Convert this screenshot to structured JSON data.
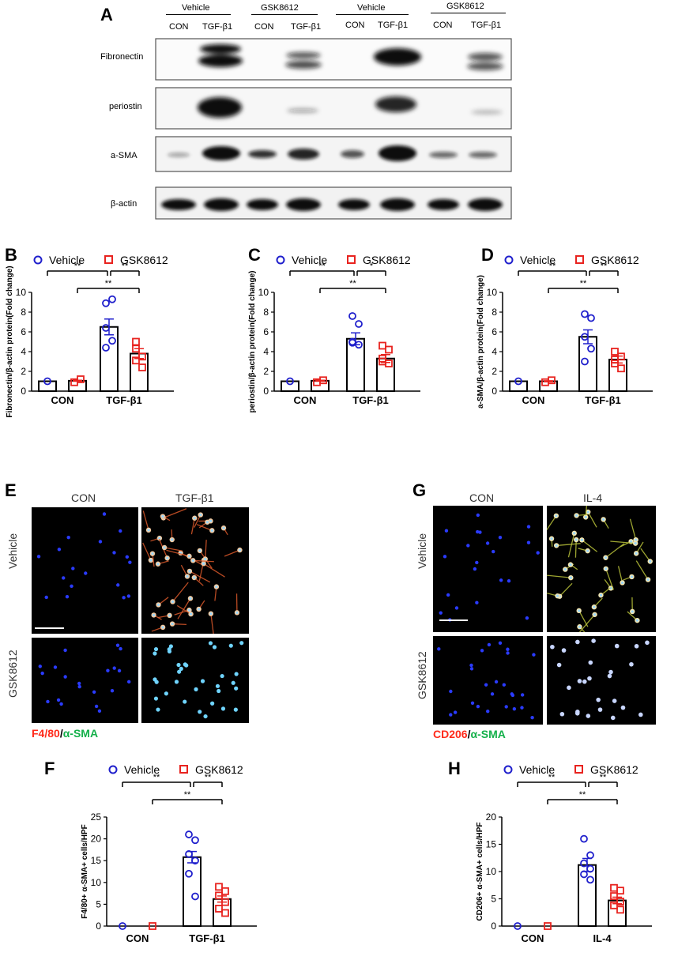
{
  "panel_letters": [
    "A",
    "B",
    "C",
    "D",
    "E",
    "F",
    "G",
    "H"
  ],
  "blot": {
    "groups": [
      "Vehicle",
      "GSK8612",
      "Vehicle",
      "GSK8612"
    ],
    "lanes": [
      "CON",
      "TGF-β1",
      "CON",
      "TGF-β1",
      "CON",
      "TGF-β1",
      "CON",
      "TGF-β1"
    ],
    "rows": [
      "Fibronectin",
      "periostin",
      "a-SMA",
      "β-actin"
    ]
  },
  "legend": {
    "vehicle": "Vehicle",
    "gsk": "GSK8612"
  },
  "colors": {
    "vehicle": "#1f1fcc",
    "gsk": "#e8231f",
    "dapi": "#2a3bff",
    "red_stain": "#ff2a1a",
    "green_stain": "#14b04a"
  },
  "micro_e": {
    "col_con": "CON",
    "col_treat": "TGF-β1",
    "row1": "Vehicle",
    "row2": "GSK8612",
    "stain_a": "F4/80",
    "stain_sep": "/",
    "stain_b": "α-SMA"
  },
  "micro_g": {
    "col_con": "CON",
    "col_treat": "IL-4",
    "row1": "Vehicle",
    "row2": "GSK8612",
    "stain_a": "CD206",
    "stain_sep": "/",
    "stain_b": "α-SMA"
  },
  "chart_data": [
    {
      "panel": "B",
      "type": "bar",
      "ylabel": "Fibronectin/β-actin protein(Fold change)",
      "categories": [
        "CON",
        "TGF-β1"
      ],
      "ylim": [
        0,
        10
      ],
      "yticks": [
        0,
        2,
        4,
        6,
        8,
        10
      ],
      "series": [
        {
          "name": "Vehicle",
          "values": [
            1.0,
            6.5
          ],
          "sem": [
            0,
            0.8
          ],
          "points": [
            [
              1.0
            ],
            [
              8.9,
              9.3,
              6.4,
              5.1,
              4.4
            ]
          ]
        },
        {
          "name": "GSK8612",
          "values": [
            1.05,
            3.8
          ],
          "sem": [
            0.05,
            0.5
          ],
          "points": [
            [
              0.9,
              1.2
            ],
            [
              5.0,
              3.5,
              3.1,
              2.4,
              4.3
            ]
          ]
        }
      ],
      "sig": [
        {
          "label": "**",
          "from": "CON-Vehicle",
          "to": "TGF-Vehicle"
        },
        {
          "label": "**",
          "from": "TGF-Vehicle",
          "to": "TGF-GSK"
        },
        {
          "label": "**",
          "from": "CON-GSK",
          "to": "TGF-GSK"
        }
      ]
    },
    {
      "panel": "C",
      "type": "bar",
      "ylabel": "periostin/β-actin protein(Fold change)",
      "categories": [
        "CON",
        "TGF-β1"
      ],
      "ylim": [
        0,
        10
      ],
      "yticks": [
        0,
        2,
        4,
        6,
        8,
        10
      ],
      "series": [
        {
          "name": "Vehicle",
          "values": [
            1.0,
            5.3
          ],
          "sem": [
            0,
            0.6
          ],
          "points": [
            [
              1.0
            ],
            [
              7.6,
              6.8,
              5.0,
              4.7,
              4.9
            ]
          ]
        },
        {
          "name": "GSK8612",
          "values": [
            1.05,
            3.3
          ],
          "sem": [
            0.05,
            0.4
          ],
          "points": [
            [
              0.9,
              1.1
            ],
            [
              4.6,
              4.2,
              3.3,
              2.8,
              3.0
            ]
          ]
        }
      ],
      "sig": [
        {
          "label": "**",
          "from": "CON-Vehicle",
          "to": "TGF-Vehicle"
        },
        {
          "label": "*",
          "from": "TGF-Vehicle",
          "to": "TGF-GSK"
        },
        {
          "label": "**",
          "from": "CON-GSK",
          "to": "TGF-GSK"
        }
      ]
    },
    {
      "panel": "D",
      "type": "bar",
      "ylabel": "a-SMA/β-actin protein(Fold change)",
      "categories": [
        "CON",
        "TGF-β1"
      ],
      "ylim": [
        0,
        10
      ],
      "yticks": [
        0,
        2,
        4,
        6,
        8,
        10
      ],
      "series": [
        {
          "name": "Vehicle",
          "values": [
            1.0,
            5.5
          ],
          "sem": [
            0,
            0.7
          ],
          "points": [
            [
              1.0
            ],
            [
              7.8,
              7.4,
              5.5,
              4.3,
              3.0
            ]
          ]
        },
        {
          "name": "GSK8612",
          "values": [
            1.0,
            3.2
          ],
          "sem": [
            0.05,
            0.35
          ],
          "points": [
            [
              0.9,
              1.1
            ],
            [
              4.0,
              3.5,
              2.8,
              2.3,
              3.2
            ]
          ]
        }
      ],
      "sig": [
        {
          "label": "**",
          "from": "CON-Vehicle",
          "to": "TGF-Vehicle"
        },
        {
          "label": "**",
          "from": "TGF-Vehicle",
          "to": "TGF-GSK"
        },
        {
          "label": "**",
          "from": "CON-GSK",
          "to": "TGF-GSK"
        }
      ]
    },
    {
      "panel": "F",
      "type": "bar",
      "ylabel": "F4/80+ α-SMA+ cells/HPF",
      "categories": [
        "CON",
        "TGF-β1"
      ],
      "ylim": [
        0,
        25
      ],
      "yticks": [
        0,
        5,
        10,
        15,
        20,
        25
      ],
      "series": [
        {
          "name": "Vehicle",
          "values": [
            0,
            15.8
          ],
          "sem": [
            0,
            1.3
          ],
          "points": [
            [
              0
            ],
            [
              21,
              19.7,
              16.5,
              15,
              12,
              6.8
            ]
          ]
        },
        {
          "name": "GSK8612",
          "values": [
            0,
            6.2
          ],
          "sem": [
            0,
            0.7
          ],
          "points": [
            [
              0
            ],
            [
              9,
              8,
              7,
              5.5,
              4,
              3
            ]
          ]
        }
      ],
      "sig": [
        {
          "label": "**",
          "from": "CON-Vehicle",
          "to": "TGF-Vehicle"
        },
        {
          "label": "**",
          "from": "TGF-Vehicle",
          "to": "TGF-GSK"
        },
        {
          "label": "**",
          "from": "CON-GSK",
          "to": "TGF-GSK"
        }
      ]
    },
    {
      "panel": "H",
      "type": "bar",
      "ylabel": "CD206+ α-SMA+ cells/HPF",
      "categories": [
        "CON",
        "IL-4"
      ],
      "ylim": [
        0,
        20
      ],
      "yticks": [
        0,
        5,
        10,
        15,
        20
      ],
      "series": [
        {
          "name": "Vehicle",
          "values": [
            0,
            11.2
          ],
          "sem": [
            0,
            1.2
          ],
          "points": [
            [
              0
            ],
            [
              16,
              13,
              11.5,
              10.5,
              9.5,
              8.5
            ]
          ]
        },
        {
          "name": "GSK8612",
          "values": [
            0,
            4.7
          ],
          "sem": [
            0,
            0.6
          ],
          "points": [
            [
              0
            ],
            [
              7,
              6.5,
              5.5,
              4.5,
              3.8,
              3
            ]
          ]
        }
      ],
      "sig": [
        {
          "label": "**",
          "from": "CON-Vehicle",
          "to": "TGF-Vehicle"
        },
        {
          "label": "**",
          "from": "TGF-Vehicle",
          "to": "TGF-GSK"
        },
        {
          "label": "**",
          "from": "CON-GSK",
          "to": "TGF-GSK"
        }
      ]
    }
  ]
}
